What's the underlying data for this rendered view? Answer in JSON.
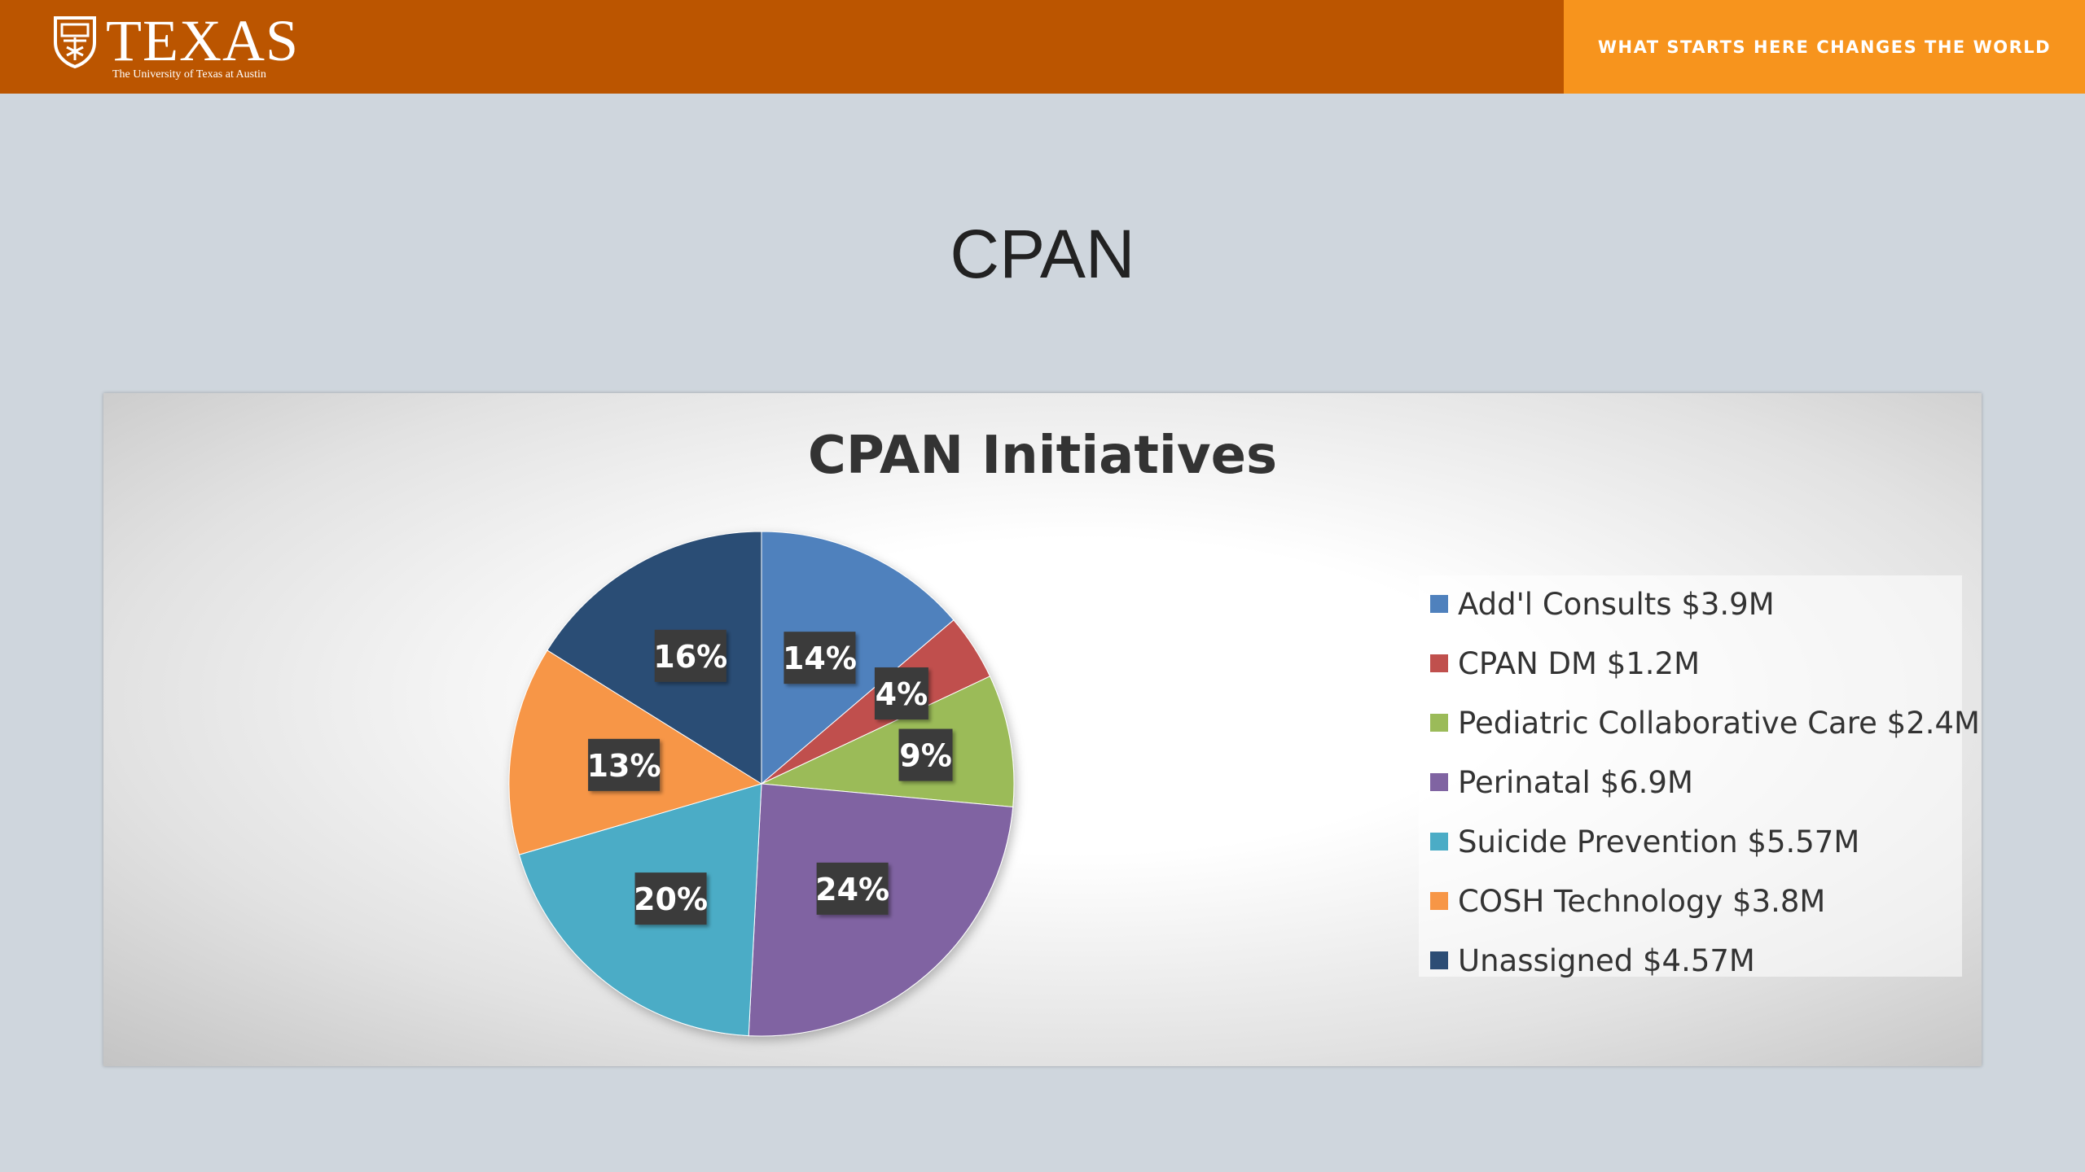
{
  "header": {
    "logo_text": "TEXAS",
    "logo_subtitle": "The University of Texas at Austin",
    "tagline": "WHAT STARTS HERE CHANGES THE WORLD",
    "colors": {
      "burnt_orange": "#bb5500",
      "orange": "#f7941d"
    }
  },
  "slide": {
    "title": "CPAN"
  },
  "chart_data": {
    "type": "pie",
    "title": "CPAN Initiatives",
    "legend_position": "right",
    "start": "top, clockwise",
    "slices": [
      {
        "label": "Add'l Consults $3.9M",
        "value": 3.9,
        "percent_label": "14%",
        "color": "#4f81bd"
      },
      {
        "label": "CPAN DM $1.2M",
        "value": 1.2,
        "percent_label": "4%",
        "color": "#c0504d"
      },
      {
        "label": "Pediatric Collaborative Care $2.4M",
        "value": 2.4,
        "percent_label": "9%",
        "color": "#9bbb59"
      },
      {
        "label": "Perinatal $6.9M",
        "value": 6.9,
        "percent_label": "24%",
        "color": "#8064a2"
      },
      {
        "label": "Suicide Prevention $5.57M",
        "value": 5.57,
        "percent_label": "20%",
        "color": "#4bacc6"
      },
      {
        "label": "COSH Technology $3.8M",
        "value": 3.8,
        "percent_label": "13%",
        "color": "#f79646"
      },
      {
        "label": "Unassigned $4.57M",
        "value": 4.57,
        "percent_label": "16%",
        "color": "#2c4d75"
      }
    ]
  }
}
